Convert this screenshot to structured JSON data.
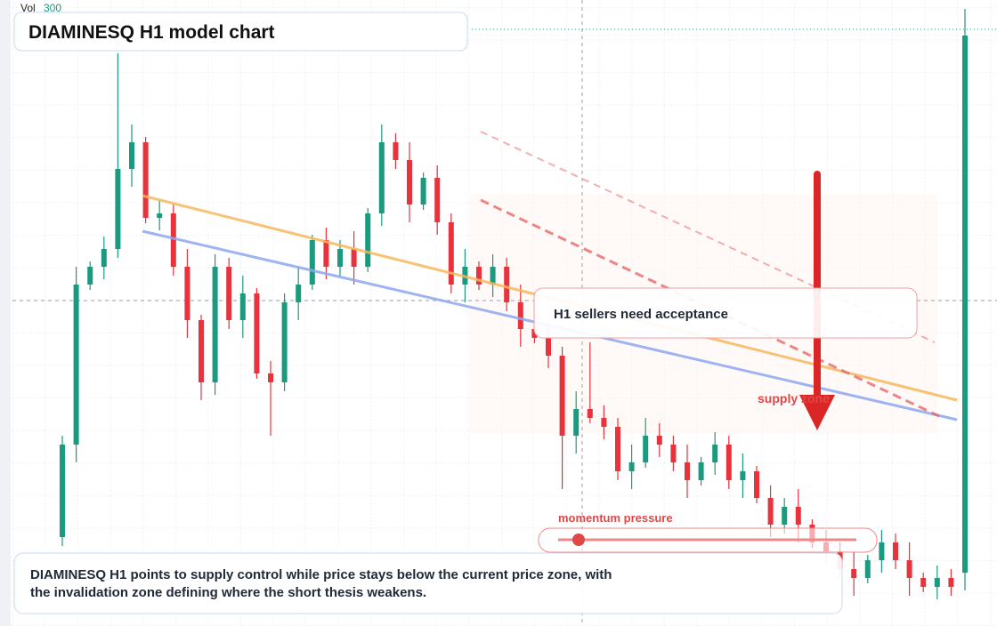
{
  "chart_data": {
    "type": "candlestick",
    "title": "DIAMINESQ H1 model chart",
    "volume_label": "Vol",
    "volume_value": 300,
    "annotation": "H1 sellers need acceptance",
    "zone_label": "supply zone",
    "momentum_label": "momentum pressure",
    "summary": "DIAMINESQ H1 points to supply control while price stays below the current price zone, with the invalidation zone defining where the short thesis weakens.",
    "up_color": "#1a9a7e",
    "down_color": "#e8323c",
    "ylim": [
      0,
      704
    ],
    "open": [
      100,
      204,
      384,
      404,
      424,
      514,
      544,
      459,
      464,
      404,
      344,
      274,
      404,
      344,
      374,
      284,
      274,
      364,
      384,
      434,
      404,
      424,
      404,
      464,
      544,
      524,
      474,
      504,
      454,
      384,
      404,
      384,
      404,
      364,
      334,
      324,
      304,
      214,
      244,
      234,
      224,
      174,
      184,
      214,
      204,
      184,
      164,
      184,
      204,
      164,
      174,
      144,
      114,
      134,
      114,
      94,
      84,
      64,
      54,
      74,
      94,
      74,
      54,
      44,
      54,
      60
    ],
    "high": [
      214,
      404,
      410,
      438,
      644,
      564,
      550,
      478,
      474,
      424,
      350,
      418,
      414,
      394,
      380,
      298,
      374,
      404,
      440,
      448,
      434,
      444,
      470,
      564,
      554,
      544,
      510,
      518,
      464,
      424,
      410,
      418,
      414,
      384,
      340,
      338,
      314,
      264,
      319,
      248,
      234,
      204,
      234,
      228,
      214,
      204,
      190,
      218,
      214,
      194,
      180,
      158,
      144,
      154,
      120,
      108,
      94,
      84,
      80,
      108,
      104,
      94,
      60,
      68,
      64,
      694
    ],
    "low": [
      90,
      184,
      378,
      390,
      414,
      494,
      453,
      445,
      394,
      324,
      254,
      260,
      334,
      324,
      278,
      214,
      264,
      344,
      378,
      390,
      394,
      384,
      398,
      450,
      514,
      454,
      468,
      440,
      374,
      364,
      378,
      370,
      354,
      314,
      318,
      290,
      154,
      194,
      228,
      210,
      164,
      154,
      178,
      190,
      174,
      144,
      158,
      170,
      154,
      144,
      138,
      100,
      104,
      94,
      88,
      70,
      54,
      34,
      48,
      60,
      64,
      34,
      38,
      30,
      34,
      40
    ],
    "close": [
      204,
      384,
      404,
      424,
      514,
      544,
      459,
      464,
      404,
      344,
      274,
      404,
      344,
      374,
      284,
      274,
      364,
      384,
      434,
      404,
      424,
      404,
      464,
      544,
      524,
      474,
      504,
      454,
      384,
      404,
      384,
      404,
      364,
      334,
      324,
      304,
      214,
      244,
      234,
      224,
      174,
      184,
      214,
      204,
      184,
      164,
      184,
      204,
      164,
      174,
      144,
      114,
      134,
      114,
      94,
      84,
      64,
      54,
      74,
      94,
      74,
      54,
      44,
      54,
      44,
      664
    ]
  }
}
